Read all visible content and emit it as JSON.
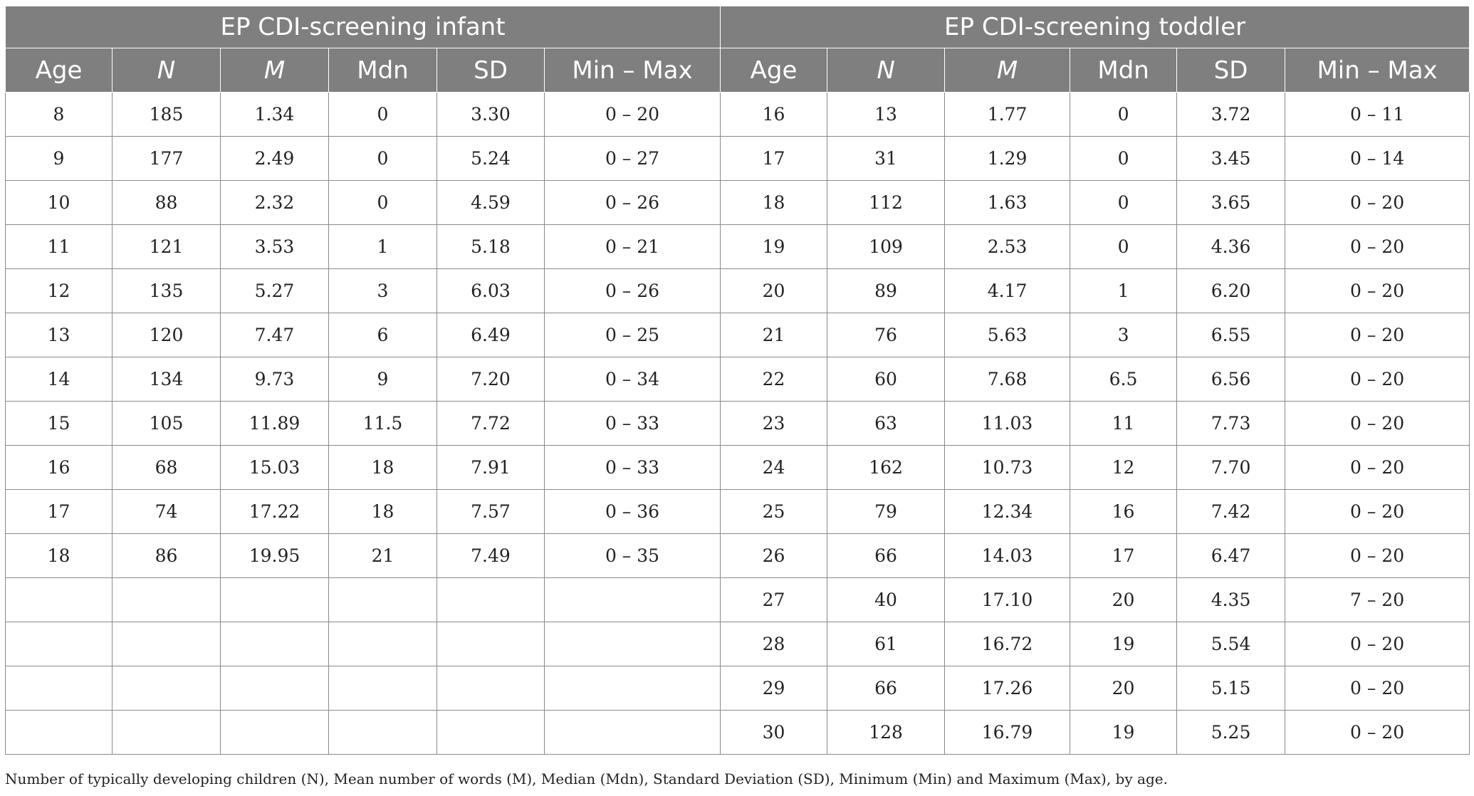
{
  "table": {
    "groups": [
      "EP CDI-screening infant",
      "EP CDI-screening toddler"
    ],
    "columns": [
      "Age",
      "N",
      "M",
      "Mdn",
      "SD",
      "Min – Max",
      "Age",
      "N",
      "M",
      "Mdn",
      "SD",
      "Min – Max"
    ],
    "rows": [
      [
        "8",
        "185",
        "1.34",
        "0",
        "3.30",
        "0 – 20",
        "16",
        "13",
        "1.77",
        "0",
        "3.72",
        "0 – 11"
      ],
      [
        "9",
        "177",
        "2.49",
        "0",
        "5.24",
        "0 – 27",
        "17",
        "31",
        "1.29",
        "0",
        "3.45",
        "0 – 14"
      ],
      [
        "10",
        "88",
        "2.32",
        "0",
        "4.59",
        "0 – 26",
        "18",
        "112",
        "1.63",
        "0",
        "3.65",
        "0 – 20"
      ],
      [
        "11",
        "121",
        "3.53",
        "1",
        "5.18",
        "0 – 21",
        "19",
        "109",
        "2.53",
        "0",
        "4.36",
        "0 – 20"
      ],
      [
        "12",
        "135",
        "5.27",
        "3",
        "6.03",
        "0 – 26",
        "20",
        "89",
        "4.17",
        "1",
        "6.20",
        "0 – 20"
      ],
      [
        "13",
        "120",
        "7.47",
        "6",
        "6.49",
        "0 – 25",
        "21",
        "76",
        "5.63",
        "3",
        "6.55",
        "0 – 20"
      ],
      [
        "14",
        "134",
        "9.73",
        "9",
        "7.20",
        "0 – 34",
        "22",
        "60",
        "7.68",
        "6.5",
        "6.56",
        "0 – 20"
      ],
      [
        "15",
        "105",
        "11.89",
        "11.5",
        "7.72",
        "0 – 33",
        "23",
        "63",
        "11.03",
        "11",
        "7.73",
        "0 – 20"
      ],
      [
        "16",
        "68",
        "15.03",
        "18",
        "7.91",
        "0 – 33",
        "24",
        "162",
        "10.73",
        "12",
        "7.70",
        "0 – 20"
      ],
      [
        "17",
        "74",
        "17.22",
        "18",
        "7.57",
        "0 – 36",
        "25",
        "79",
        "12.34",
        "16",
        "7.42",
        "0 – 20"
      ],
      [
        "18",
        "86",
        "19.95",
        "21",
        "7.49",
        "0 – 35",
        "26",
        "66",
        "14.03",
        "17",
        "6.47",
        "0 – 20"
      ],
      [
        "",
        "",
        "",
        "",
        "",
        "",
        "27",
        "40",
        "17.10",
        "20",
        "4.35",
        "7 – 20"
      ],
      [
        "",
        "",
        "",
        "",
        "",
        "",
        "28",
        "61",
        "16.72",
        "19",
        "5.54",
        "0 – 20"
      ],
      [
        "",
        "",
        "",
        "",
        "",
        "",
        "29",
        "66",
        "17.26",
        "20",
        "5.15",
        "0 – 20"
      ],
      [
        "",
        "",
        "",
        "",
        "",
        "",
        "30",
        "128",
        "16.79",
        "19",
        "5.25",
        "0 – 20"
      ]
    ],
    "footnote": "Number of typically developing children (N), Mean number of words (M), Median (Mdn), Standard Deviation (SD), Minimum (Min) and Maximum (Max), by age."
  }
}
